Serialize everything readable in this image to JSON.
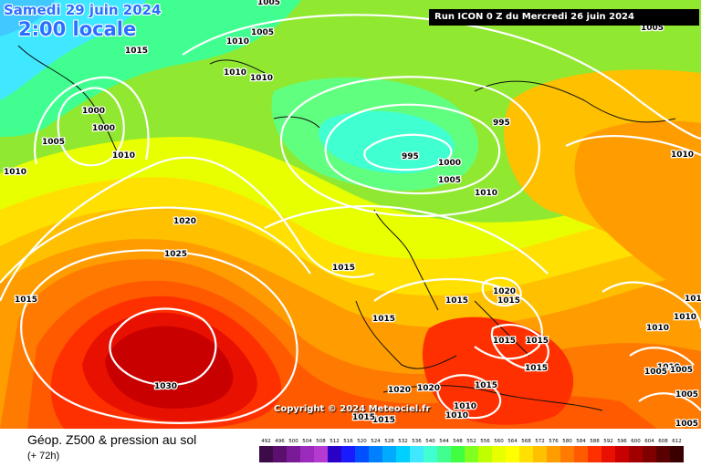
{
  "header": {
    "date_text": "Samedi 29 juin 2024",
    "time_text": "2:00 locale",
    "run_info": "Run ICON 0 Z du Mercredi 26 juin 2024"
  },
  "copyright": "Copyright © 2024 Meteociel.fr",
  "footer": {
    "title": "Géop. Z500 & pression au sol",
    "lead": "(+ 72h)"
  },
  "legend": {
    "values": [
      "492",
      "496",
      "500",
      "504",
      "508",
      "512",
      "516",
      "520",
      "524",
      "528",
      "532",
      "536",
      "540",
      "544",
      "548",
      "552",
      "556",
      "560",
      "564",
      "568",
      "572",
      "576",
      "580",
      "584",
      "588",
      "592",
      "596",
      "600",
      "604",
      "608",
      "612"
    ],
    "colors": [
      "#3d0b4a",
      "#5b1070",
      "#7a1a96",
      "#9c2bbd",
      "#b43ad1",
      "#2a00c8",
      "#1a1aff",
      "#0050ff",
      "#0080ff",
      "#00aaff",
      "#00d0ff",
      "#40e8ff",
      "#40ffd0",
      "#40ff90",
      "#40ff40",
      "#80ff20",
      "#c0ff00",
      "#e8ff00",
      "#ffff00",
      "#ffe000",
      "#ffc000",
      "#ff9c00",
      "#ff7a00",
      "#ff5a00",
      "#ff3000",
      "#e81000",
      "#c80000",
      "#a00000",
      "#800000",
      "#5a0000",
      "#3a0000"
    ]
  },
  "isobars": [
    {
      "label": "1005"
    },
    {
      "label": "1015"
    },
    {
      "label": "1010"
    },
    {
      "label": "1005"
    },
    {
      "label": "1010"
    },
    {
      "label": "1010"
    },
    {
      "label": "1000"
    },
    {
      "label": "1000"
    },
    {
      "label": "1005"
    },
    {
      "label": "1010"
    },
    {
      "label": "1010"
    },
    {
      "label": "995"
    },
    {
      "label": "995"
    },
    {
      "label": "1000"
    },
    {
      "label": "1005"
    },
    {
      "label": "1010"
    },
    {
      "label": "1020"
    },
    {
      "label": "1025"
    },
    {
      "label": "1015"
    },
    {
      "label": "1015"
    },
    {
      "label": "1015"
    },
    {
      "label": "1030"
    },
    {
      "label": "1015"
    },
    {
      "label": "1020"
    },
    {
      "label": "1015"
    },
    {
      "label": "1015"
    },
    {
      "label": "1015"
    },
    {
      "label": "1015"
    },
    {
      "label": "1020"
    },
    {
      "label": "1020"
    },
    {
      "label": "1010"
    },
    {
      "label": "1010"
    },
    {
      "label": "1015"
    },
    {
      "label": "1015"
    },
    {
      "label": "1010"
    },
    {
      "label": "1010"
    },
    {
      "label": "1010"
    },
    {
      "label": "1005"
    },
    {
      "label": "1005"
    },
    {
      "label": "1005"
    },
    {
      "label": "1005"
    },
    {
      "label": "1005"
    },
    {
      "label": "1010"
    },
    {
      "label": "1015"
    },
    {
      "label": "1015"
    }
  ]
}
